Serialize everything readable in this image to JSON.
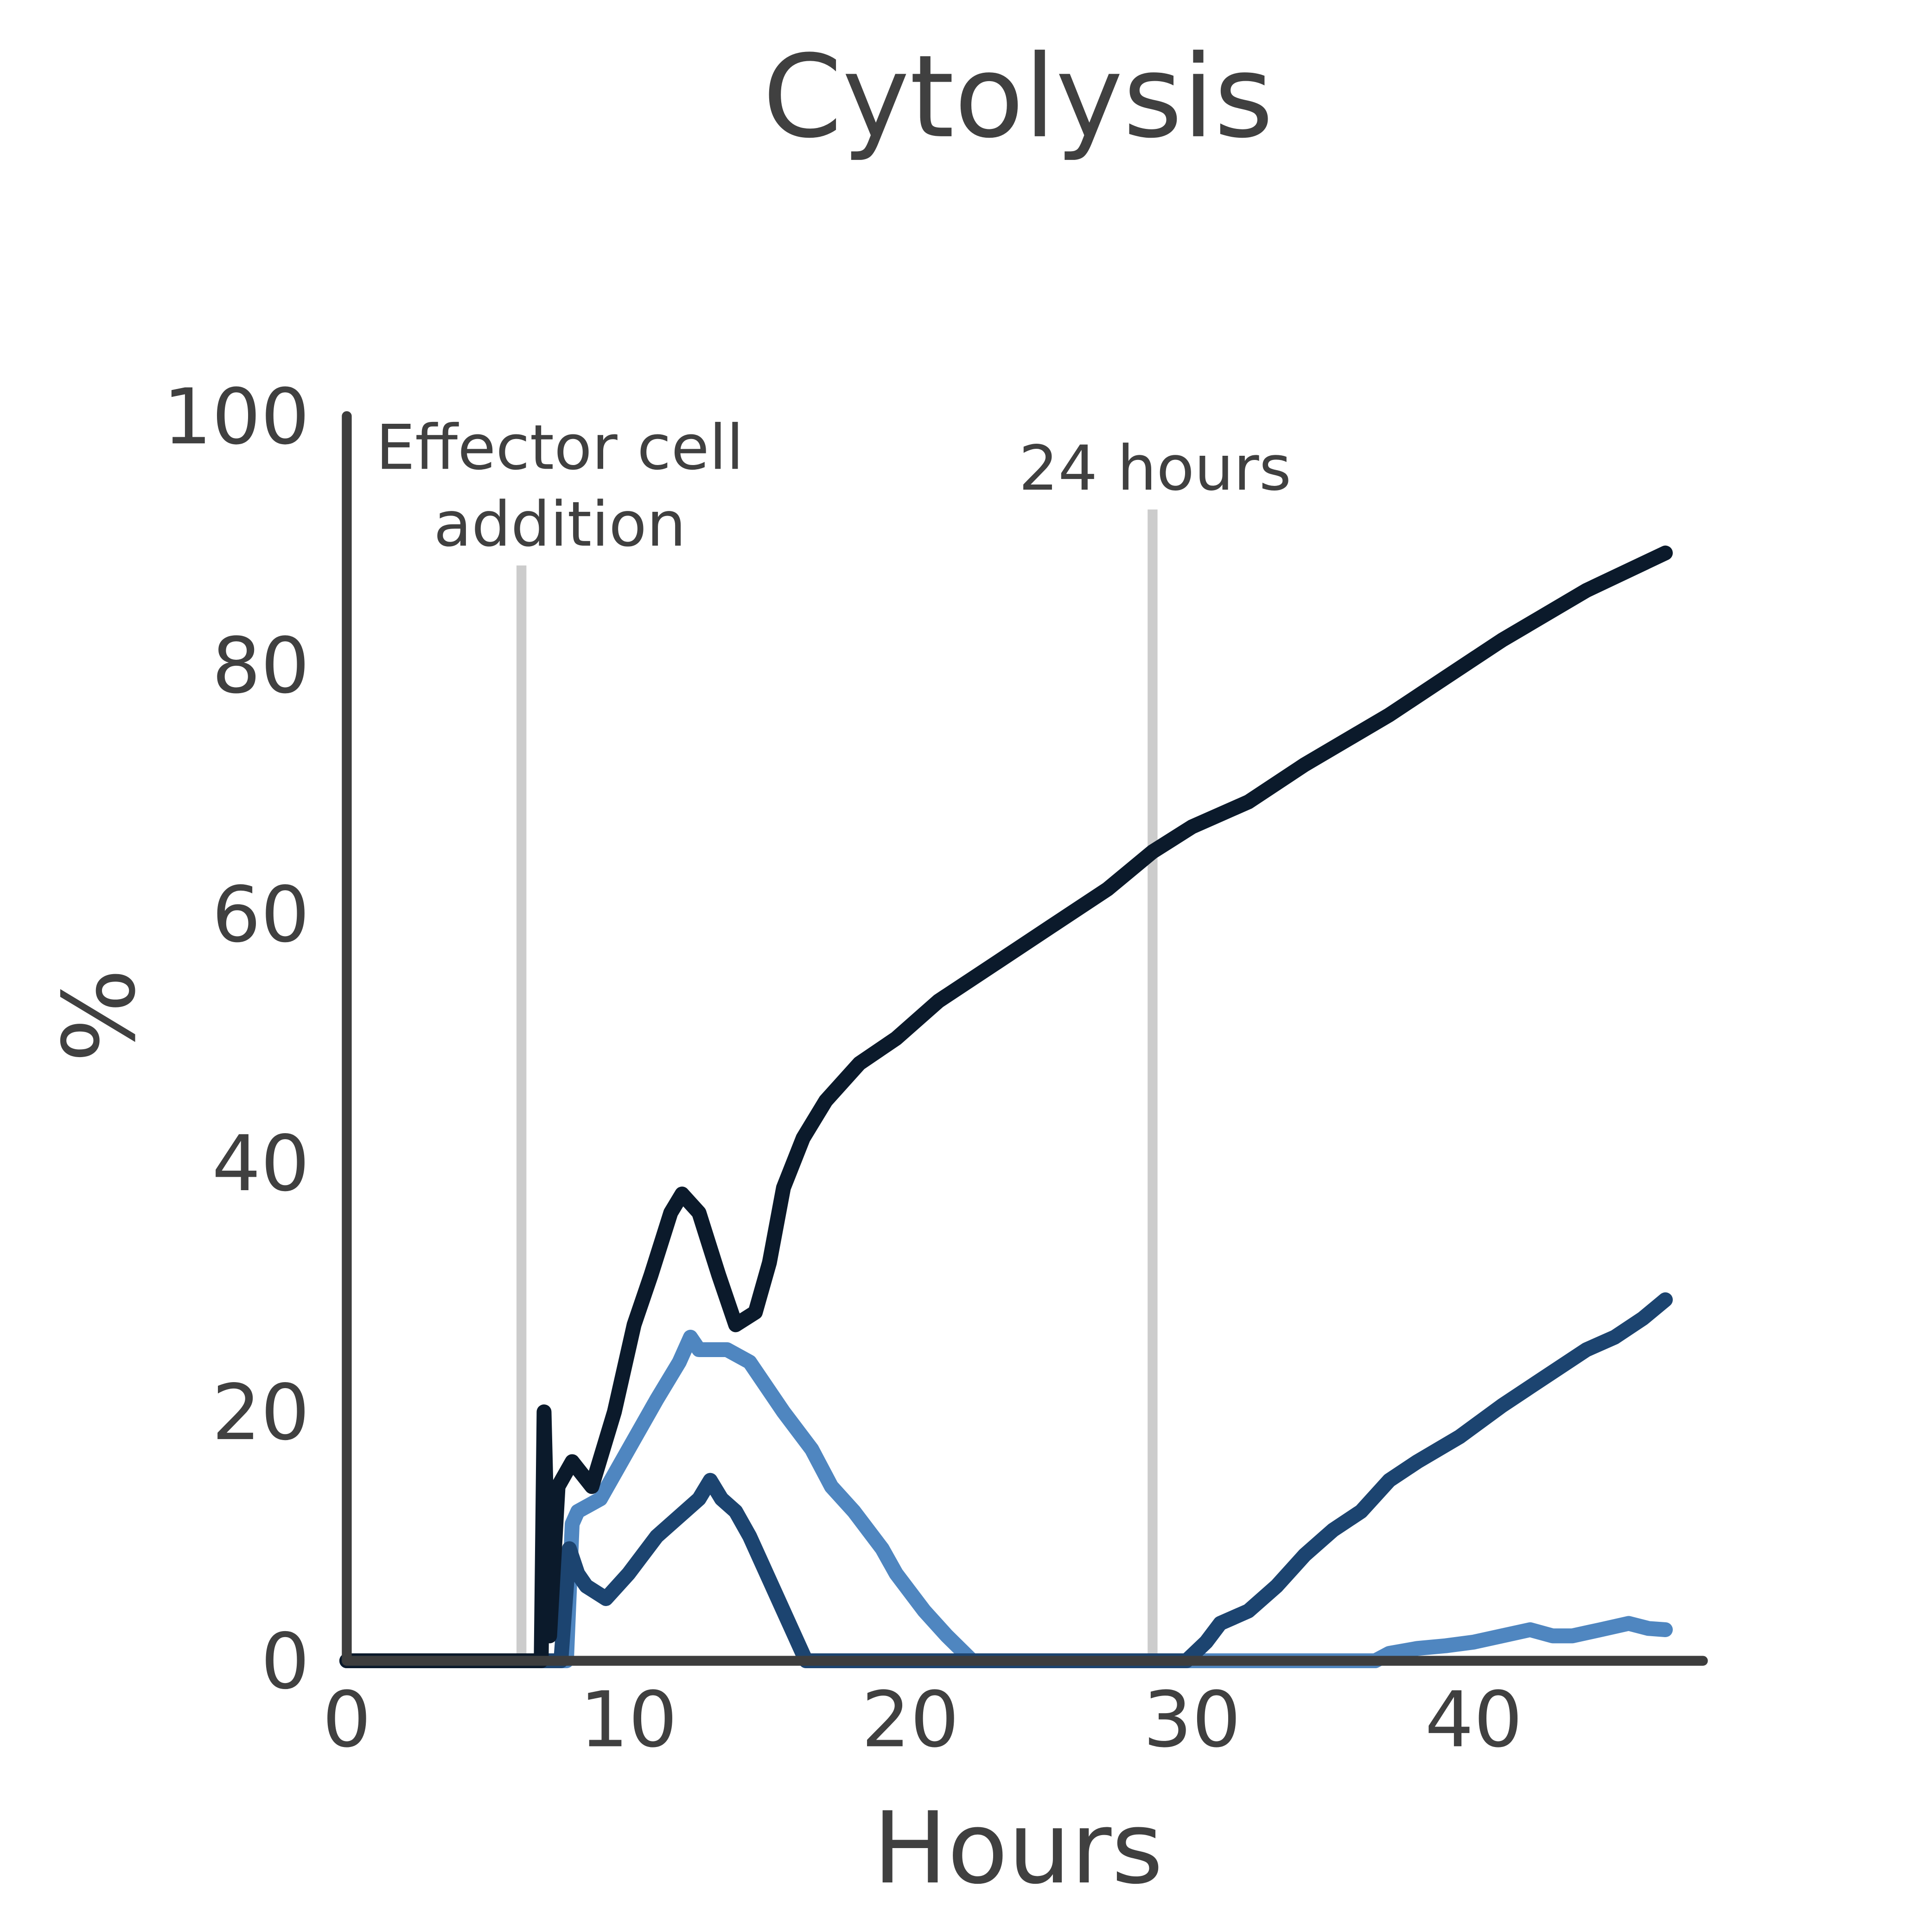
{
  "chart_data": {
    "type": "line",
    "title": "Cytolysis",
    "xlabel": "Hours",
    "ylabel": "%",
    "xlim": [
      0,
      48
    ],
    "ylim": [
      0,
      100
    ],
    "xticks": [
      0,
      10,
      20,
      30,
      40
    ],
    "yticks": [
      0,
      20,
      40,
      60,
      80,
      100
    ],
    "grid": false,
    "legend": "none",
    "annotations": [
      {
        "label_lines": [
          "Effector cell",
          "addition"
        ],
        "x": 6.2,
        "top": 88
      },
      {
        "label_lines": [
          "24 hours"
        ],
        "x": 28.6,
        "top": 92.5
      }
    ],
    "annotation_color": "#cccccc",
    "axis_color": "#3d3d3d",
    "series": [
      {
        "color": "#4f86c0",
        "points": [
          [
            0,
            0
          ],
          [
            7.8,
            0
          ],
          [
            8.0,
            11
          ],
          [
            8.2,
            12
          ],
          [
            9,
            13
          ],
          [
            10,
            17
          ],
          [
            11,
            21
          ],
          [
            11.8,
            24
          ],
          [
            12.2,
            26
          ],
          [
            12.5,
            25
          ],
          [
            13.5,
            25
          ],
          [
            14.3,
            24
          ],
          [
            15.5,
            20
          ],
          [
            16.5,
            17
          ],
          [
            17.2,
            14
          ],
          [
            18,
            12
          ],
          [
            19,
            9
          ],
          [
            19.5,
            7
          ],
          [
            20.5,
            4
          ],
          [
            21.3,
            2
          ],
          [
            22.2,
            0
          ],
          [
            36.5,
            0
          ],
          [
            37,
            0.6
          ],
          [
            38,
            1
          ],
          [
            39,
            1.2
          ],
          [
            40,
            1.5
          ],
          [
            41,
            2
          ],
          [
            42,
            2.5
          ],
          [
            42.8,
            2
          ],
          [
            43.5,
            2
          ],
          [
            44.5,
            2.5
          ],
          [
            45.5,
            3
          ],
          [
            46.2,
            2.6
          ],
          [
            46.8,
            2.5
          ]
        ]
      },
      {
        "color": "#1c4470",
        "points": [
          [
            0,
            0
          ],
          [
            7.6,
            0
          ],
          [
            7.9,
            9
          ],
          [
            8.2,
            7
          ],
          [
            8.5,
            6
          ],
          [
            9.2,
            5
          ],
          [
            10,
            7
          ],
          [
            11,
            10
          ],
          [
            12,
            12
          ],
          [
            12.5,
            13
          ],
          [
            12.9,
            14.5
          ],
          [
            13.3,
            13
          ],
          [
            13.8,
            12
          ],
          [
            14.3,
            10
          ],
          [
            14.7,
            8
          ],
          [
            15.1,
            6
          ],
          [
            15.5,
            4
          ],
          [
            15.9,
            2
          ],
          [
            16.3,
            0
          ],
          [
            29.8,
            0
          ],
          [
            30.5,
            1.5
          ],
          [
            31,
            3
          ],
          [
            32,
            4
          ],
          [
            33,
            6
          ],
          [
            34,
            8.5
          ],
          [
            35,
            10.5
          ],
          [
            36,
            12
          ],
          [
            37,
            14.5
          ],
          [
            38,
            16
          ],
          [
            39.5,
            18
          ],
          [
            41,
            20.5
          ],
          [
            42,
            22
          ],
          [
            43,
            23.5
          ],
          [
            44,
            25
          ],
          [
            45,
            26
          ],
          [
            46,
            27.5
          ],
          [
            46.8,
            29
          ]
        ]
      },
      {
        "color": "#0b1a2b",
        "points": [
          [
            0,
            0
          ],
          [
            6.9,
            0
          ],
          [
            7.0,
            20
          ],
          [
            7.2,
            2
          ],
          [
            7.5,
            14
          ],
          [
            8,
            16
          ],
          [
            8.7,
            14
          ],
          [
            9.5,
            20
          ],
          [
            10.2,
            27
          ],
          [
            10.8,
            31
          ],
          [
            11.5,
            36
          ],
          [
            11.9,
            37.5
          ],
          [
            12.5,
            36
          ],
          [
            13.2,
            31
          ],
          [
            13.8,
            27
          ],
          [
            14.5,
            28
          ],
          [
            15,
            32
          ],
          [
            15.5,
            38
          ],
          [
            16.2,
            42
          ],
          [
            17,
            45
          ],
          [
            18.2,
            48
          ],
          [
            19.5,
            50
          ],
          [
            21,
            53
          ],
          [
            23,
            56
          ],
          [
            25,
            59
          ],
          [
            27,
            62
          ],
          [
            28.6,
            65
          ],
          [
            30,
            67
          ],
          [
            32,
            69
          ],
          [
            34,
            72
          ],
          [
            37,
            76
          ],
          [
            39,
            79
          ],
          [
            41,
            82
          ],
          [
            44,
            86
          ],
          [
            46.8,
            89
          ]
        ]
      }
    ]
  }
}
